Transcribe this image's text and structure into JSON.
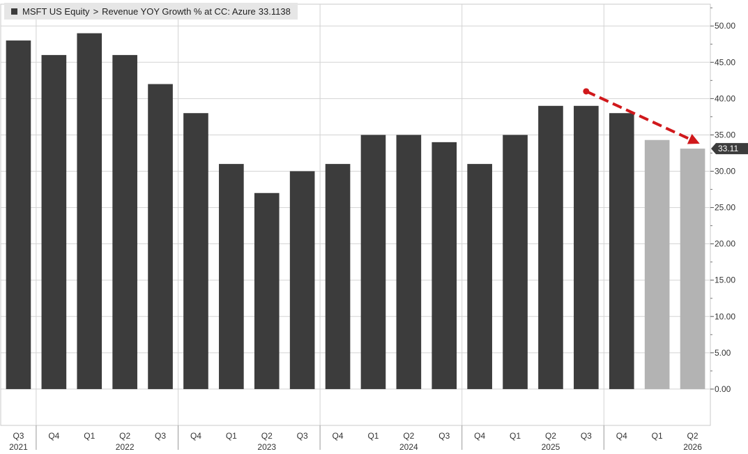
{
  "legend": {
    "ticker": "MSFT US Equity",
    "separator": ">",
    "field": "Revenue YOY Growth % at CC: Azure",
    "value": "33.1138"
  },
  "chart_data": {
    "type": "bar",
    "categories": [
      "Q3",
      "Q4",
      "Q1",
      "Q2",
      "Q3",
      "Q4",
      "Q1",
      "Q2",
      "Q3",
      "Q4",
      "Q1",
      "Q2",
      "Q3",
      "Q4",
      "Q1",
      "Q2",
      "Q3",
      "Q4",
      "Q1",
      "Q2"
    ],
    "year_labels": [
      {
        "label": "2021",
        "index": 0
      },
      {
        "label": "2022",
        "index": 3
      },
      {
        "label": "2023",
        "index": 7
      },
      {
        "label": "2024",
        "index": 11
      },
      {
        "label": "2025",
        "index": 15
      },
      {
        "label": "2026",
        "index": 19
      }
    ],
    "year_dividers_before_index": [
      1,
      5,
      9,
      13,
      17
    ],
    "values": [
      48,
      46,
      49,
      46,
      42,
      38,
      31,
      27,
      30,
      31,
      35,
      35,
      34,
      31,
      35,
      39,
      39,
      38,
      34.3,
      33.11
    ],
    "estimate_from_index": 18,
    "yticks": [
      "0.00",
      "5.00",
      "10.00",
      "15.00",
      "20.00",
      "25.00",
      "30.00",
      "35.00",
      "40.00",
      "45.00",
      "50.00"
    ],
    "ylim": [
      -5,
      53
    ],
    "last_value_label": "33.11",
    "trend_arrow": {
      "from": {
        "x": 16,
        "y": 41
      },
      "to": {
        "x": 19.2,
        "y": 33.8
      }
    },
    "colors": {
      "actual": "#3c3c3c",
      "estimate": "#b3b3b3",
      "grid": "#d3d3d3",
      "arrow": "#d0181b",
      "value_tag": "#3c3c3c"
    },
    "grid": true,
    "legend_position": "top-left"
  }
}
